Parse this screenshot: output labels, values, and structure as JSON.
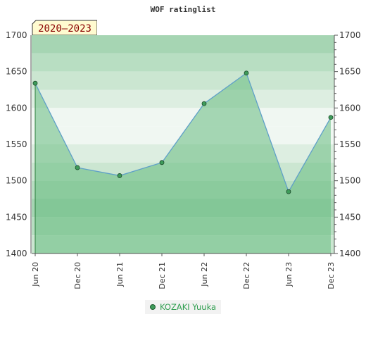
{
  "chart_data": {
    "type": "line",
    "title": "WOF ratinglist",
    "badge": "2020–2023",
    "categories": [
      "Jun 20",
      "Dec 20",
      "Jun 21",
      "Dec 21",
      "Jun 22",
      "Dec 22",
      "Jun 23",
      "Dec 23"
    ],
    "series": [
      {
        "name": "KOZAKI Yuuka",
        "values": [
          1634,
          1518,
          1507,
          1525,
          1606,
          1648,
          1485,
          1587
        ]
      }
    ],
    "ylim": [
      1400,
      1700
    ],
    "yticks": [
      1400,
      1450,
      1500,
      1550,
      1600,
      1650,
      1700
    ],
    "grid": true,
    "legend_placement": "bottom",
    "colors": {
      "line": "#5fa0c8",
      "area": "#66bb80",
      "marker": "#3e9b5a",
      "legend_text": "#2f9e4f",
      "badge_bg": "#fffbd0",
      "badge_text": "#8b0000"
    }
  }
}
